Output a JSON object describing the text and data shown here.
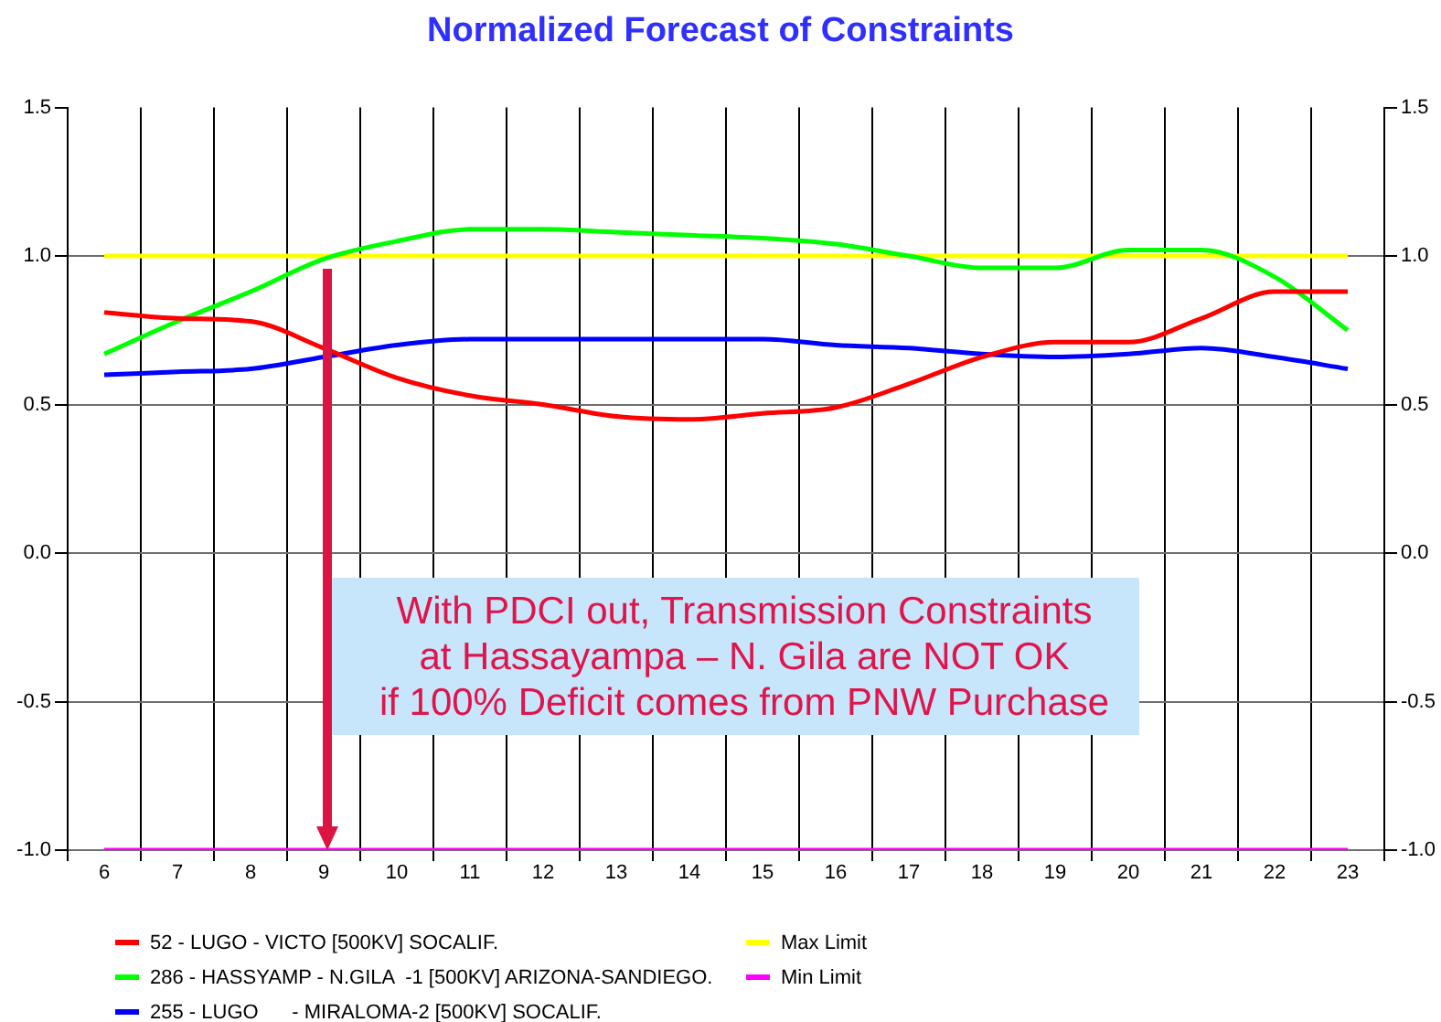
{
  "chart_data": {
    "type": "line",
    "title": "Normalized Forecast of Constraints",
    "categories": [
      "6",
      "7",
      "8",
      "9",
      "10",
      "11",
      "12",
      "13",
      "14",
      "15",
      "16",
      "17",
      "18",
      "19",
      "20",
      "21",
      "22",
      "23"
    ],
    "series": [
      {
        "name": "52 - LUGO - VICTO [500KV] SOCALIF.",
        "color": "#ff0000",
        "values": [
          0.81,
          0.79,
          0.78,
          0.69,
          0.59,
          0.53,
          0.5,
          0.46,
          0.45,
          0.47,
          0.49,
          0.57,
          0.66,
          0.71,
          0.71,
          0.79,
          0.88,
          0.88
        ]
      },
      {
        "name": "286 - HASSYAMP - N.GILA  -1 [500KV] ARIZONA-SANDIEGO.",
        "color": "#00ff00",
        "values": [
          0.67,
          0.78,
          0.88,
          0.99,
          1.05,
          1.09,
          1.09,
          1.08,
          1.07,
          1.06,
          1.04,
          1.0,
          0.96,
          0.96,
          1.02,
          1.02,
          0.93,
          0.75
        ]
      },
      {
        "name": "255 - LUGO      - MIRALOMA-2 [500KV] SOCALIF.",
        "color": "#0000ff",
        "values": [
          0.6,
          0.61,
          0.62,
          0.66,
          0.7,
          0.72,
          0.72,
          0.72,
          0.72,
          0.72,
          0.7,
          0.69,
          0.67,
          0.66,
          0.67,
          0.69,
          0.66,
          0.62
        ]
      },
      {
        "name": "Max Limit",
        "color": "#ffff00",
        "values": [
          1,
          1,
          1,
          1,
          1,
          1,
          1,
          1,
          1,
          1,
          1,
          1,
          1,
          1,
          1,
          1,
          1,
          1
        ]
      },
      {
        "name": "Min Limit",
        "color": "#ff00ff",
        "values": [
          -1,
          -1,
          -1,
          -1,
          -1,
          -1,
          -1,
          -1,
          -1,
          -1,
          -1,
          -1,
          -1,
          -1,
          -1,
          -1,
          -1,
          -1
        ]
      }
    ],
    "ylim": [
      -1,
      1.5
    ],
    "yticks": [
      {
        "value": -1,
        "label": "-1.0"
      },
      -0.5,
      {
        "value": 0,
        "label": "0.0"
      },
      0.5,
      {
        "value": 1,
        "label": "1.0"
      },
      1.5
    ],
    "y2lim": [
      -1,
      1.5
    ],
    "y2ticks": [
      {
        "value": -1,
        "label": "-1.0"
      },
      -0.5,
      {
        "value": 0,
        "label": "0.0"
      },
      0.5,
      {
        "value": 1,
        "label": "1.0"
      },
      1.5
    ],
    "grid": true,
    "legend": "bottom",
    "marker": "none",
    "annotations": [
      "With PDCI out, Transmission Constraints\nat Hassayampa – N. Gila are NOT OK\nif 100% Deficit comes from PNW Purchase"
    ]
  }
}
